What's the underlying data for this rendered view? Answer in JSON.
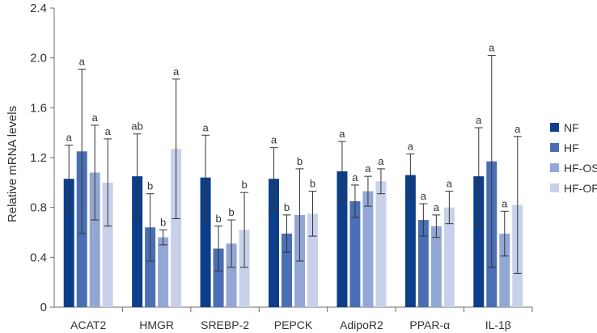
{
  "chart_data": {
    "type": "bar",
    "title": "",
    "xlabel": "",
    "ylabel": "Relative mRNA levels",
    "ylim": [
      0,
      2.4
    ],
    "yticks": [
      "0",
      "0.4",
      "0.8",
      "1.2",
      "1.6",
      "2.0",
      "2.4"
    ],
    "categories": [
      "ACAT2",
      "HMGR",
      "SREBP-2",
      "PEPCK",
      "AdipoR2",
      "PPAR-α",
      "IL-1β"
    ],
    "legend_position": "right",
    "series": [
      {
        "name": "NF",
        "color": "#0d3e8a",
        "values": [
          1.03,
          1.05,
          1.04,
          1.03,
          1.09,
          1.06,
          1.05
        ],
        "errors": [
          0.27,
          0.34,
          0.34,
          0.25,
          0.24,
          0.17,
          0.39
        ],
        "labels": [
          "a",
          "ab",
          "a",
          "a",
          "a",
          "a",
          "a"
        ]
      },
      {
        "name": "HF",
        "color": "#4b6fb5",
        "values": [
          1.25,
          0.64,
          0.47,
          0.59,
          0.85,
          0.7,
          1.17
        ],
        "errors": [
          0.66,
          0.27,
          0.18,
          0.15,
          0.13,
          0.13,
          0.85
        ],
        "labels": [
          "a",
          "b",
          "b",
          "b",
          "a",
          "a",
          "a"
        ]
      },
      {
        "name": "HF-OS",
        "color": "#93a7d5",
        "values": [
          1.08,
          0.56,
          0.51,
          0.74,
          0.93,
          0.65,
          0.59
        ],
        "errors": [
          0.38,
          0.06,
          0.19,
          0.37,
          0.12,
          0.09,
          0.18
        ],
        "labels": [
          "a",
          "b",
          "b",
          "b",
          "a",
          "a",
          "a"
        ]
      },
      {
        "name": "HF-OF",
        "color": "#c8d1ea",
        "values": [
          1.0,
          1.27,
          0.62,
          0.75,
          1.01,
          0.8,
          0.82
        ],
        "errors": [
          0.35,
          0.56,
          0.3,
          0.18,
          0.1,
          0.13,
          0.55
        ],
        "labels": [
          "a",
          "a",
          "b",
          "b",
          "a",
          "a",
          "a"
        ]
      }
    ]
  }
}
